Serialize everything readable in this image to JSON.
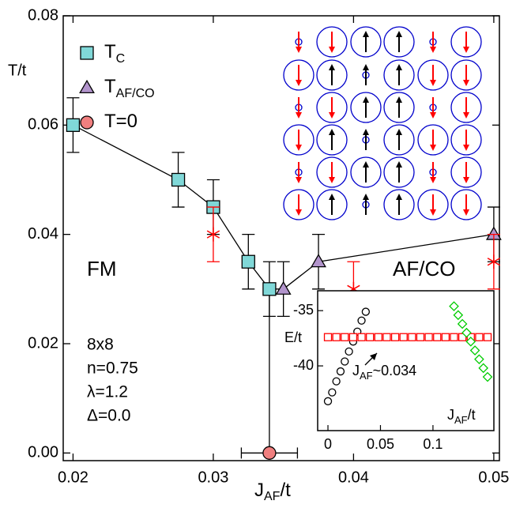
{
  "chart_data": [
    {
      "type": "scatter",
      "x_label": {
        "main": "J",
        "sub": "AF",
        "tail": "/t"
      },
      "y_label": "T/t",
      "xlim": [
        0.0193,
        0.0504
      ],
      "ylim": [
        -0.0014,
        0.08
      ],
      "xticks": [
        0.02,
        0.03,
        0.04,
        0.05
      ],
      "yticks": [
        {
          "value": 0,
          "label": "0.00"
        },
        0.02,
        0.04,
        0.06,
        0.08
      ],
      "series": [
        {
          "name": "T",
          "name_sub": "C",
          "color": "#80d8d8",
          "marker": "square",
          "x": [
            0.02,
            0.0275,
            0.03,
            0.0325,
            0.034
          ],
          "values": [
            0.06,
            0.05,
            0.045,
            0.035,
            0.03
          ],
          "errors": [
            0.005,
            0.005,
            0.005,
            0.005,
            0.005
          ]
        },
        {
          "name": "T",
          "name_sub": "AF/CO",
          "color": "#b294cc",
          "marker": "triangle",
          "x": [
            0.035,
            0.0375,
            0.05
          ],
          "values": [
            0.03,
            0.035,
            0.04
          ],
          "errors": [
            0.005,
            0.005,
            0.005
          ]
        },
        {
          "name": "T=0",
          "color": "#f07f7f",
          "marker": "circle",
          "x": [
            0.034
          ],
          "values": [
            0
          ],
          "xerrors": [
            0.002
          ]
        },
        {
          "color": "#ff0000",
          "marker": "star",
          "x": [
            0.03,
            0.04,
            0.05
          ],
          "values": [
            0.04,
            0.03,
            0.035
          ],
          "errors": [
            0.005,
            0.005,
            0.005
          ]
        }
      ],
      "annotations": [
        "FM",
        "AF/CO",
        "8x8",
        "n=0.75",
        "λ=1.2",
        "Δ=0.0"
      ]
    },
    {
      "type": "scatter",
      "x_label": {
        "main": "J",
        "sub": "AF",
        "tail": "/t"
      },
      "y_label": "E/t",
      "xlim": [
        -0.0098,
        0.158
      ],
      "ylim": [
        -45.86,
        -33.2
      ],
      "xticks": [
        0,
        0.05,
        0.1
      ],
      "yticks": [
        -35,
        -40
      ],
      "annotation": {
        "main": "J",
        "sub": "AF",
        "tail": "~0.034"
      },
      "series": [
        {
          "color": "#000000",
          "marker": "open-circle",
          "x": [
            0,
            0.004,
            0.008,
            0.012,
            0.016,
            0.02,
            0.024,
            0.028,
            0.032,
            0.036
          ],
          "values": [
            -43.2,
            -42.4,
            -41.4,
            -40.5,
            -39.6,
            -38.7,
            -37.8,
            -36.9,
            -35.9,
            -35.1
          ]
        },
        {
          "color": "#ff0000",
          "marker": "open-square",
          "x": [
            0,
            0.008,
            0.016,
            0.024,
            0.032,
            0.04,
            0.048,
            0.056,
            0.064,
            0.072,
            0.08,
            0.088,
            0.096,
            0.104,
            0.112,
            0.12,
            0.128,
            0.136,
            0.144,
            0.152
          ],
          "values": [
            -37.4,
            -37.4,
            -37.4,
            -37.4,
            -37.4,
            -37.4,
            -37.4,
            -37.4,
            -37.4,
            -37.4,
            -37.4,
            -37.4,
            -37.4,
            -37.4,
            -37.4,
            -37.4,
            -37.4,
            -37.4,
            -37.4,
            -37.4
          ]
        },
        {
          "color": "#00cc00",
          "marker": "open-diamond",
          "x": [
            0.12,
            0.124,
            0.128,
            0.132,
            0.136,
            0.14,
            0.144,
            0.148,
            0.152
          ],
          "values": [
            -34.6,
            -35.4,
            -36.2,
            -37.0,
            -37.8,
            -38.6,
            -39.4,
            -40.2,
            -41.0
          ]
        }
      ]
    }
  ]
}
